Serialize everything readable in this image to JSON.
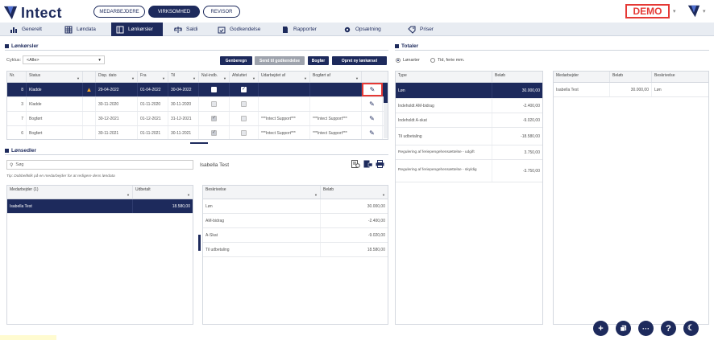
{
  "header": {
    "logo_text": "Intect",
    "roles": [
      "MEDARBEJDERE",
      "VIRKSOMHED",
      "REVISOR"
    ],
    "active_role": 1,
    "demo_label": "DEMO"
  },
  "nav": {
    "items": [
      {
        "label": "Generelt",
        "icon": "chart-icon"
      },
      {
        "label": "Løndata",
        "icon": "grid-icon"
      },
      {
        "label": "Lønkørsler",
        "icon": "window-icon"
      },
      {
        "label": "Saldi",
        "icon": "balance-icon"
      },
      {
        "label": "Godkendelse",
        "icon": "calendar-check-icon"
      },
      {
        "label": "Rapporter",
        "icon": "document-icon"
      },
      {
        "label": "Opsætning",
        "icon": "gear-icon"
      },
      {
        "label": "Priser",
        "icon": "tag-icon"
      }
    ],
    "active": 2
  },
  "lonkorsler": {
    "title": "Lønkørsler",
    "cyklus_label": "Cyklus:",
    "cyklus_value": "<Alle>",
    "buttons": {
      "genberegn": "Genberegn",
      "send": "Send til godkendelse",
      "bogfor": "Bogfør",
      "opret": "Opret ny lønkørsel"
    },
    "columns": [
      "Nr.",
      "Status",
      "",
      "Disp. dato",
      "Fra",
      "Til",
      "Nul-indb.",
      "Afsluttet",
      "Udarbejdet af",
      "Bogført af",
      ""
    ],
    "rows": [
      {
        "nr": "8",
        "status": "Kladde",
        "warn": true,
        "disp": "29-04-2022",
        "fra": "01-04-2022",
        "til": "30-04-2022",
        "nul": false,
        "afs": true,
        "udarb": "",
        "bogf": ""
      },
      {
        "nr": "3",
        "status": "Kladde",
        "warn": false,
        "disp": "30-11-2020",
        "fra": "01-11-2020",
        "til": "30-11-2020",
        "nul": false,
        "afs": false,
        "udarb": "",
        "bogf": ""
      },
      {
        "nr": "7",
        "status": "Bogført",
        "warn": false,
        "disp": "30-12-2021",
        "fra": "01-12-2021",
        "til": "31-12-2021",
        "nul": true,
        "afs": false,
        "udarb": "***Intect Support***",
        "bogf": "***Intect Support***"
      },
      {
        "nr": "6",
        "status": "Bogført",
        "warn": false,
        "disp": "30-11-2021",
        "fra": "01-11-2021",
        "til": "30-11-2021",
        "nul": true,
        "afs": false,
        "udarb": "***Intect Support***",
        "bogf": "***Intect Support***"
      }
    ]
  },
  "lonsedler": {
    "title": "Lønsedler",
    "search_placeholder": "Søg",
    "tip": "Tip: Dobbeltklik på en medarbejder for at redigere dens løndata",
    "selected_name": "Isabella Test",
    "employee_columns": [
      "Medarbejder (1)",
      "Udbetalt"
    ],
    "employees": [
      {
        "name": "Isabella Test",
        "amount": "18.580,00"
      }
    ],
    "detail_columns": [
      "Beskrivelse",
      "Beløb"
    ],
    "details": [
      {
        "desc": "Løn",
        "amount": "30.000,00"
      },
      {
        "desc": "AM-bidrag",
        "amount": "-2.400,00"
      },
      {
        "desc": "A-Skat",
        "amount": "-9.020,00"
      },
      {
        "desc": "Til udbetaling",
        "amount": "18.580,00"
      }
    ]
  },
  "totaler": {
    "title": "Totaler",
    "radio_1": "Lønarter",
    "radio_2": "Tid, ferie mm.",
    "columns": [
      "Type",
      "Beløb"
    ],
    "rows": [
      {
        "type": "Løn",
        "amount": "30.000,00"
      },
      {
        "type": "Indeholdt AM-bidrag",
        "amount": "-2.400,00"
      },
      {
        "type": "Indeholdt A-skat",
        "amount": "-9.020,00"
      },
      {
        "type": "Til udbetaling",
        "amount": "-18.580,00"
      },
      {
        "type": "Regulering af feriepengehensættelse - udgift",
        "amount": "3.750,00"
      },
      {
        "type": "Regulering af feriepengehensættelse - skyldig",
        "amount": "-3.750,00"
      }
    ],
    "side_columns": [
      "Medarbejder",
      "Beløb",
      "Beskrivelse"
    ],
    "side_rows": [
      {
        "name": "Isabella Test",
        "amount": "30.000,00",
        "desc": "Løn"
      }
    ]
  }
}
